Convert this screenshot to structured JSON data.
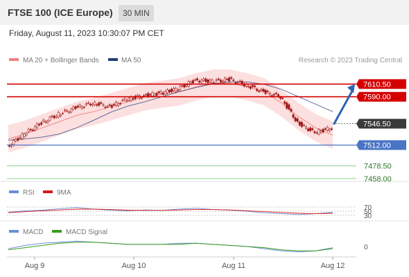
{
  "header": {
    "title": "FTSE 100 (ICE Europe)",
    "timeframe": "30 MIN"
  },
  "datetime": "Friday, August 11, 2023 10:30:07 PM CET",
  "credit": "Research © 2023 Trading Central",
  "legend": {
    "ma20": "MA 20 + Bollinger Bands",
    "ma50": "MA 50",
    "rsi": "RSI",
    "rsi_ma": "9MA",
    "macd": "MACD",
    "macd_signal": "MACD Signal"
  },
  "colors": {
    "resistance": "#d40000",
    "support": "#4a74c4",
    "target": "#8fd08f",
    "target_text": "#2a7a2a",
    "ma20": "#f08080",
    "band": "#fbd4d4",
    "ma50": "#1f3e7a",
    "candle": "#a01818",
    "arrow": "#2d64b4",
    "current": "#3a3a3a",
    "rsi": "#6a8fd8",
    "rsi_ma": "#d81818",
    "macd": "#6a8fd8",
    "macd_signal": "#3a9a1a"
  },
  "chart_data": [
    {
      "type": "line",
      "title": "",
      "x_ticks": [
        "Aug 9",
        "Aug 10",
        "Aug 11",
        "Aug 12"
      ],
      "ylim": [
        7450,
        7640
      ],
      "price_levels": [
        {
          "value": 7610.5,
          "label": "7610.50",
          "kind": "resistance"
        },
        {
          "value": 7590.0,
          "label": "7590.00",
          "kind": "resistance"
        },
        {
          "value": 7546.5,
          "label": "7546.50",
          "kind": "current"
        },
        {
          "value": 7512.0,
          "label": "7512.00",
          "kind": "support"
        },
        {
          "value": 7478.5,
          "label": "7478.50",
          "kind": "target"
        },
        {
          "value": 7458.0,
          "label": "7458.00",
          "kind": "target"
        }
      ],
      "series": [
        {
          "name": "MA 20 + Bollinger Bands",
          "values": [
            7522,
            7530,
            7540,
            7550,
            7560,
            7566,
            7574,
            7582,
            7590,
            7594,
            7598,
            7606,
            7612,
            7612,
            7606,
            7598,
            7580,
            7558,
            7540,
            7528
          ]
        },
        {
          "name": "MA 50",
          "values": [
            7520,
            7522,
            7525,
            7530,
            7540,
            7552,
            7565,
            7575,
            7582,
            7590,
            7598,
            7605,
            7611,
            7614,
            7614,
            7610,
            7602,
            7590,
            7578,
            7566
          ]
        }
      ],
      "close": [
        7510,
        7530,
        7548,
        7562,
        7572,
        7580,
        7574,
        7586,
        7592,
        7596,
        7603,
        7617,
        7615,
        7618,
        7609,
        7598,
        7590,
        7548,
        7532,
        7540
      ],
      "forecast": {
        "from": 7546.5,
        "to": 7610.5
      }
    },
    {
      "type": "line",
      "title": "",
      "ylim": [
        20,
        80
      ],
      "y_ticks": [
        "70",
        "50",
        "30"
      ],
      "series": [
        {
          "name": "RSI",
          "values": [
            45,
            52,
            55,
            62,
            68,
            60,
            55,
            52,
            56,
            54,
            60,
            64,
            58,
            55,
            50,
            42,
            38,
            34,
            38,
            45
          ]
        },
        {
          "name": "9MA",
          "values": [
            43,
            48,
            52,
            56,
            60,
            60,
            58,
            55,
            54,
            54,
            56,
            58,
            58,
            56,
            52,
            48,
            44,
            40,
            38,
            40
          ]
        }
      ]
    },
    {
      "type": "line",
      "title": "",
      "ylim": [
        -9,
        9
      ],
      "y_ticks": [
        "0"
      ],
      "series": [
        {
          "name": "MACD",
          "values": [
            -2,
            1,
            3,
            4,
            5,
            4,
            3,
            2,
            2,
            2,
            3,
            3,
            2,
            1,
            0,
            -2,
            -4,
            -5,
            -4,
            -1
          ]
        },
        {
          "name": "MACD Signal",
          "values": [
            -3,
            -1,
            1,
            3,
            4,
            4,
            3,
            2,
            2,
            2,
            2,
            3,
            2,
            1,
            0,
            -1,
            -3,
            -4,
            -4,
            -2
          ]
        }
      ]
    }
  ]
}
